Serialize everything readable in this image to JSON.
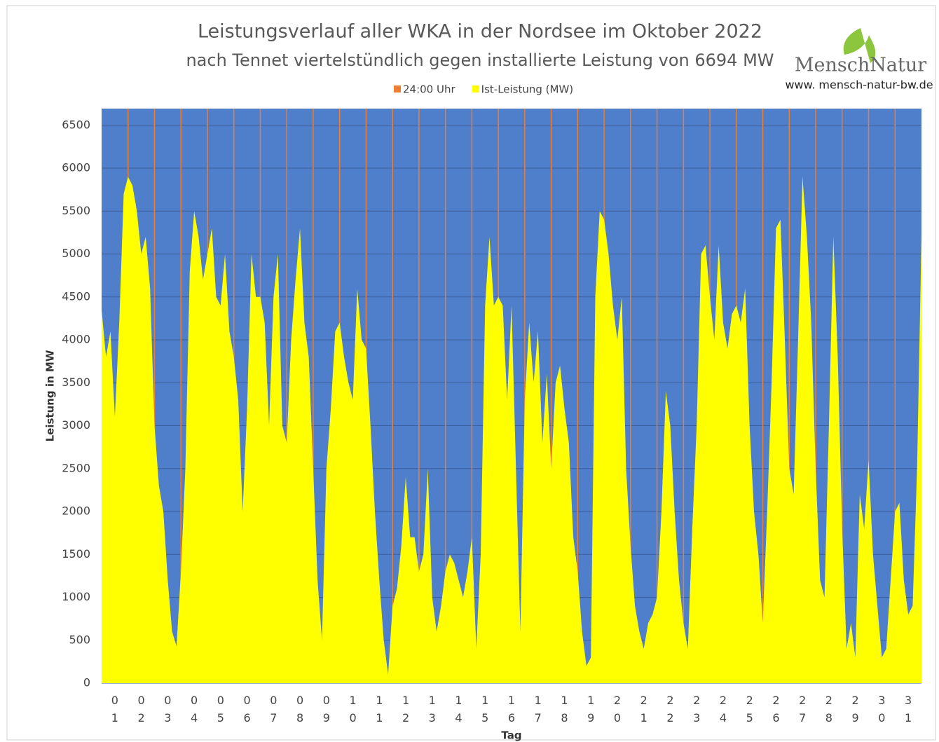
{
  "chart_data": {
    "type": "area",
    "title": "Leistungsverlauf aller WKA in der Nordsee im Oktober 2022",
    "subtitle": "nach Tennet viertelstündlich gegen installierte Leistung von 6694 MW",
    "annotations": [
      "MenschNatur",
      "www. mensch-natur-bw.de"
    ],
    "ylabel": "Leistung in MW",
    "xlabel": "Tag",
    "categories": [
      "01",
      "02",
      "03",
      "04",
      "05",
      "06",
      "07",
      "08",
      "09",
      "10",
      "11",
      "12",
      "13",
      "14",
      "15",
      "16",
      "17",
      "18",
      "19",
      "20",
      "21",
      "22",
      "23",
      "24",
      "25",
      "26",
      "27",
      "28",
      "29",
      "30",
      "31"
    ],
    "xlim": [
      0,
      744
    ],
    "ylim": [
      0,
      6694
    ],
    "yticks": [
      0,
      500,
      1000,
      1500,
      2000,
      2500,
      3000,
      3500,
      4000,
      4500,
      5000,
      5500,
      6000,
      6500
    ],
    "grid": true,
    "background": "#4f7ecb",
    "legend": "top",
    "series": [
      {
        "name": "24:00 Uhr",
        "color": "#ed7d31",
        "x": [
          24,
          48,
          72,
          96,
          120,
          144,
          168,
          192,
          216,
          240,
          264,
          288,
          312,
          336,
          360,
          384,
          408,
          432,
          456,
          480,
          504,
          528,
          552,
          576,
          600,
          624,
          648,
          672,
          696,
          720
        ],
        "values": [
          6694,
          6694,
          6694,
          6694,
          6694,
          6694,
          6694,
          6694,
          6694,
          6694,
          6694,
          6694,
          6694,
          6694,
          6694,
          6694,
          6694,
          6694,
          6694,
          6694,
          6694,
          6694,
          6694,
          6694,
          6694,
          6694,
          6694,
          6694,
          6694,
          6694
        ]
      },
      {
        "name": "Ist-Leistung (MW)",
        "color": "#ffff00",
        "x": [
          0,
          4,
          8,
          12,
          16,
          20,
          24,
          28,
          32,
          36,
          40,
          44,
          48,
          52,
          56,
          60,
          64,
          68,
          72,
          76,
          80,
          84,
          88,
          92,
          96,
          100,
          104,
          108,
          112,
          116,
          120,
          124,
          128,
          132,
          136,
          140,
          144,
          148,
          152,
          156,
          160,
          164,
          168,
          172,
          176,
          180,
          184,
          188,
          192,
          196,
          200,
          204,
          208,
          212,
          216,
          220,
          224,
          228,
          232,
          236,
          240,
          244,
          248,
          252,
          256,
          260,
          264,
          268,
          272,
          276,
          280,
          284,
          288,
          292,
          296,
          300,
          304,
          308,
          312,
          316,
          320,
          324,
          328,
          332,
          336,
          340,
          344,
          348,
          352,
          356,
          360,
          364,
          368,
          372,
          376,
          380,
          384,
          388,
          392,
          396,
          400,
          404,
          408,
          412,
          416,
          420,
          424,
          428,
          432,
          436,
          440,
          444,
          448,
          452,
          456,
          460,
          464,
          468,
          472,
          476,
          480,
          484,
          488,
          492,
          496,
          500,
          504,
          508,
          512,
          516,
          520,
          524,
          528,
          532,
          536,
          540,
          544,
          548,
          552,
          556,
          560,
          564,
          568,
          572,
          576,
          580,
          584,
          588,
          592,
          596,
          600,
          604,
          608,
          612,
          616,
          620,
          624,
          628,
          632,
          636,
          640,
          644,
          648,
          652,
          656,
          660,
          664,
          668,
          672,
          676,
          680,
          684,
          688,
          692,
          696,
          700,
          704,
          708,
          712,
          716,
          720,
          724,
          728,
          732,
          736,
          740,
          744
        ],
        "values": [
          4350,
          3800,
          4100,
          3100,
          4200,
          5700,
          5900,
          5800,
          5500,
          5000,
          5200,
          4600,
          3000,
          2300,
          2000,
          1200,
          600,
          430,
          1300,
          2500,
          4800,
          5500,
          5200,
          4700,
          5000,
          5300,
          4500,
          4400,
          5000,
          4100,
          3800,
          3300,
          2000,
          3200,
          5000,
          4500,
          4500,
          4200,
          3000,
          4500,
          5000,
          3000,
          2800,
          4000,
          4700,
          5300,
          4200,
          3800,
          2500,
          1200,
          500,
          2500,
          3200,
          4100,
          4200,
          3800,
          3500,
          3300,
          4600,
          4000,
          3900,
          3000,
          2000,
          1200,
          500,
          100,
          900,
          1100,
          1600,
          2400,
          1700,
          1700,
          1300,
          1500,
          2500,
          1000,
          600,
          900,
          1300,
          1500,
          1400,
          1200,
          1000,
          1300,
          1700,
          400,
          1500,
          4400,
          5200,
          4400,
          4500,
          4400,
          3300,
          4400,
          2500,
          600,
          3300,
          4200,
          3500,
          4100,
          2800,
          3600,
          2500,
          3500,
          3700,
          3200,
          2800,
          1700,
          1300,
          600,
          200,
          300,
          4500,
          5500,
          5400,
          5000,
          4400,
          4000,
          4500,
          2500,
          1600,
          900,
          600,
          400,
          700,
          800,
          1000,
          2000,
          3400,
          3000,
          2000,
          1200,
          700,
          400,
          1800,
          3000,
          5000,
          5100,
          4500,
          4000,
          5100,
          4200,
          3900,
          4300,
          4400,
          4200,
          4600,
          3000,
          2000,
          1500,
          700,
          2000,
          3500,
          5300,
          5400,
          4000,
          2500,
          2200,
          4000,
          5900,
          5200,
          4200,
          2500,
          1200,
          1000,
          3000,
          5200,
          3800,
          1800,
          400,
          700,
          300,
          2200,
          1800,
          2600,
          1500,
          900,
          300,
          400,
          1200,
          2000,
          2100,
          1200,
          800,
          900,
          2500,
          5200
        ]
      }
    ]
  }
}
